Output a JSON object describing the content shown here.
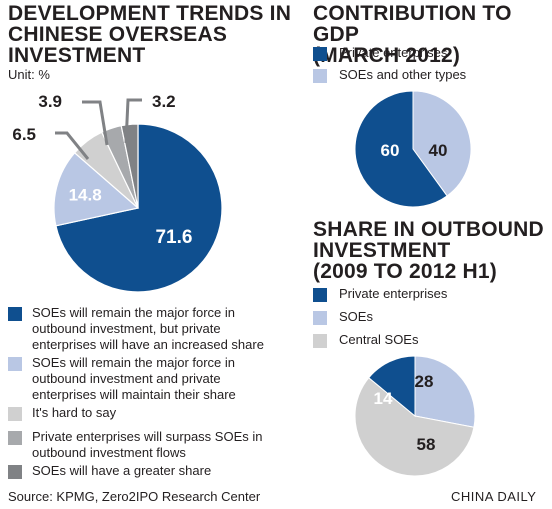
{
  "colors": {
    "dark_blue": "#0f4f8f",
    "light_blue": "#b9c7e4",
    "light_gray": "#d0d0d0",
    "mid_gray": "#a7a9ac",
    "dark_gray": "#808285"
  },
  "left": {
    "title_lines": [
      "DEVELOPMENT TRENDS IN",
      "CHINESE OVERSEAS",
      "INVESTMENT"
    ],
    "unit": "Unit: %",
    "legend": [
      {
        "color": "dark_blue",
        "text": "SOEs will remain the major force in outbound investment, but private enterprises will have an increased share"
      },
      {
        "color": "light_blue",
        "text": "SOEs will remain the major force in outbound investment and private enterprises will maintain their share"
      },
      {
        "color": "light_gray",
        "text": "It's hard to say"
      },
      {
        "color": "mid_gray",
        "text": "Private enterprises will surpass SOEs in outbound investment flows"
      },
      {
        "color": "dark_gray",
        "text": "SOEs will have a greater share"
      }
    ]
  },
  "right_top": {
    "title_lines": [
      "CONTRIBUTION TO GDP",
      "(MARCH 2012)"
    ],
    "legend": [
      {
        "color": "dark_blue",
        "text": "Private enterprises"
      },
      {
        "color": "light_blue",
        "text": "SOEs and other types"
      }
    ]
  },
  "right_bottom": {
    "title_lines": [
      "SHARE IN OUTBOUND",
      "INVESTMENT",
      "(2009 TO 2012 H1)"
    ],
    "legend": [
      {
        "color": "dark_blue",
        "text": "Private enterprises"
      },
      {
        "color": "light_blue",
        "text": "SOEs"
      },
      {
        "color": "light_gray",
        "text": "Central SOEs"
      }
    ]
  },
  "footer": {
    "source": "Source: KPMG, Zero2IPO Research Center",
    "brand": "CHINA DAILY"
  },
  "chart_data": [
    {
      "type": "pie",
      "title": "DEVELOPMENT TRENDS IN CHINESE OVERSEAS INVESTMENT",
      "unit": "Unit: %",
      "categories": [
        "SOEs will remain the major force in outbound investment, but private enterprises will have an increased share",
        "SOEs will remain the major force in outbound investment and private enterprises will maintain their share",
        "It's hard to say",
        "Private enterprises will surpass SOEs in outbound investment flows",
        "SOEs will have a greater share"
      ],
      "values": [
        71.6,
        14.8,
        6.5,
        3.9,
        3.2
      ],
      "labels": [
        "71.6",
        "14.8",
        "6.5",
        "3.9",
        "3.2"
      ],
      "colors": [
        "#0f4f8f",
        "#b9c7e4",
        "#d0d0d0",
        "#a7a9ac",
        "#808285"
      ]
    },
    {
      "type": "pie",
      "title": "CONTRIBUTION TO GDP (MARCH 2012)",
      "categories": [
        "Private enterprises",
        "SOEs and other types"
      ],
      "values": [
        60,
        40
      ],
      "labels": [
        "60",
        "40"
      ],
      "colors": [
        "#0f4f8f",
        "#b9c7e4"
      ]
    },
    {
      "type": "pie",
      "title": "SHARE IN OUTBOUND INVESTMENT (2009 TO 2012 H1)",
      "categories": [
        "Private enterprises",
        "SOEs",
        "Central SOEs"
      ],
      "values": [
        14,
        28,
        58
      ],
      "labels": [
        "14",
        "28",
        "58"
      ],
      "colors": [
        "#0f4f8f",
        "#b9c7e4",
        "#d0d0d0"
      ]
    }
  ]
}
